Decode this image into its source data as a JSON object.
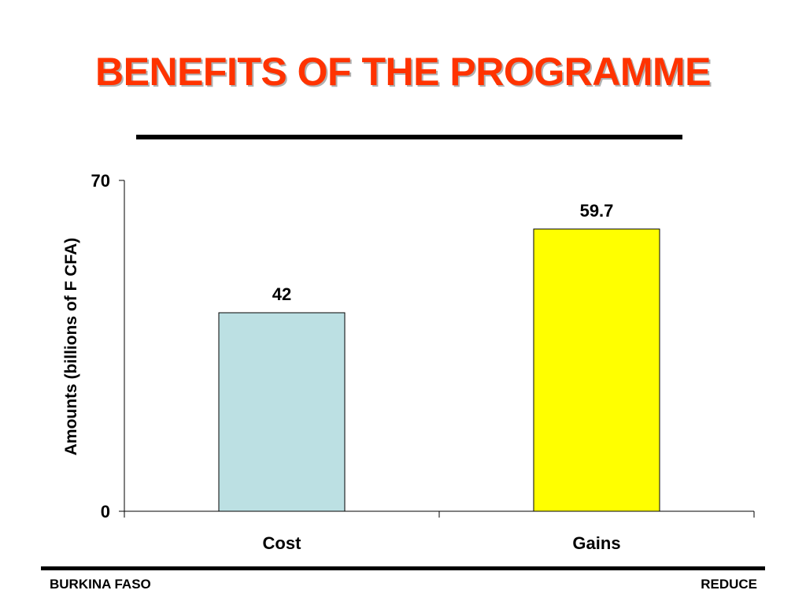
{
  "slide": {
    "title": "BENEFITS OF THE PROGRAMME",
    "title_color": "#ff3300",
    "footer_left": "BURKINA FASO",
    "footer_right": "REDUCE"
  },
  "chart_data": {
    "type": "bar",
    "title": "",
    "xlabel": "",
    "ylabel": "Amounts (billions of F CFA)",
    "categories": [
      "Cost",
      "Gains"
    ],
    "values": [
      42,
      59.7
    ],
    "value_labels": [
      "42",
      "59.7"
    ],
    "bar_colors": [
      "#bce0e3",
      "#ffff00"
    ],
    "ylim": [
      0,
      70
    ],
    "yticks": [
      0,
      70
    ],
    "grid": false,
    "legend": "none"
  }
}
